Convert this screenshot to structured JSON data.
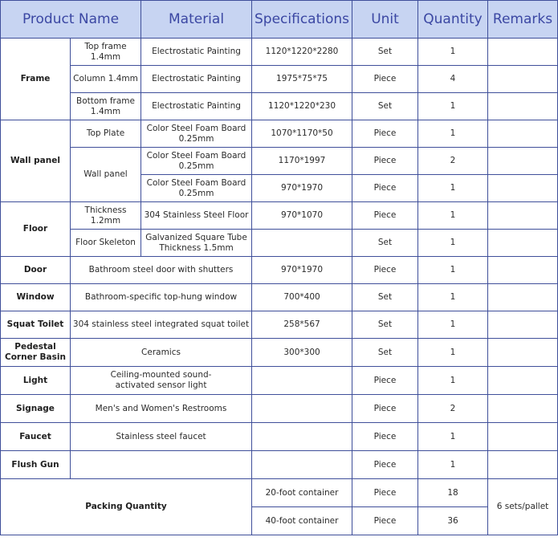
{
  "headers": [
    "Product Name",
    "Material",
    "Specifications",
    "Unit",
    "Quantity",
    "Remarks"
  ],
  "rows": {
    "frame": {
      "name": "Frame",
      "items": [
        {
          "part": "Top frame 1.4mm",
          "material": "Electrostatic Painting",
          "spec": "1120*1220*2280",
          "unit": "Set",
          "qty": "1"
        },
        {
          "part": "Column 1.4mm",
          "material": "Electrostatic Painting",
          "spec": "1975*75*75",
          "unit": "Piece",
          "qty": "4"
        },
        {
          "part": "Bottom frame 1.4mm",
          "material": "Electrostatic Painting",
          "spec": "1120*1220*230",
          "unit": "Set",
          "qty": "1"
        }
      ]
    },
    "wall": {
      "name": "Wall panel",
      "items": [
        {
          "part": "Top Plate",
          "material": "Color Steel Foam Board 0.25mm",
          "spec": "1070*1170*50",
          "unit": "Piece",
          "qty": "1"
        },
        {
          "part": "Wall panel",
          "material": "Color Steel Foam Board 0.25mm",
          "spec": "1170*1997",
          "unit": "Piece",
          "qty": "2"
        },
        {
          "material": "Color Steel Foam Board 0.25mm",
          "spec": "970*1970",
          "unit": "Piece",
          "qty": "1"
        }
      ]
    },
    "floor": {
      "name": "Floor",
      "items": [
        {
          "part": "Thickness 1.2mm",
          "material": "304 Stainless Steel Floor",
          "spec": "970*1070",
          "unit": "Piece",
          "qty": "1"
        },
        {
          "part": "Floor Skeleton",
          "material": "Galvanized Square Tube Thickness 1.5mm",
          "spec": "",
          "unit": "Set",
          "qty": "1"
        }
      ]
    },
    "door": {
      "name": "Door",
      "material": "Bathroom steel door with shutters",
      "spec": "970*1970",
      "unit": "Piece",
      "qty": "1"
    },
    "window": {
      "name": "Window",
      "material": "Bathroom-specific top-hung window",
      "spec": "700*400",
      "unit": "Set",
      "qty": "1"
    },
    "squat": {
      "name": "Squat Toilet",
      "material": "304 stainless steel integrated squat toilet",
      "spec": "258*567",
      "unit": "Set",
      "qty": "1"
    },
    "basin": {
      "name": "Pedestal Corner Basin",
      "material": "Ceramics",
      "spec": "300*300",
      "unit": "Set",
      "qty": "1"
    },
    "light": {
      "name": "Light",
      "material": "Ceiling-mounted sound-activated sensor light",
      "spec": "",
      "unit": "Piece",
      "qty": "1"
    },
    "signage": {
      "name": "Signage",
      "material": "Men's and Women's Restrooms",
      "spec": "",
      "unit": "Piece",
      "qty": "2"
    },
    "faucet": {
      "name": "Faucet",
      "material": "Stainless steel faucet",
      "spec": "",
      "unit": "Piece",
      "qty": "1"
    },
    "flush": {
      "name": "Flush Gun",
      "material": "",
      "spec": "",
      "unit": "Piece",
      "qty": "1"
    },
    "packing": {
      "name": "Packing Quantity",
      "remarks": "6 sets/pallet",
      "items": [
        {
          "spec": "20-foot container",
          "unit": "Piece",
          "qty": "18"
        },
        {
          "spec": "40-foot container",
          "unit": "Piece",
          "qty": "36"
        }
      ]
    }
  },
  "colors": {
    "header_bg": "#c7d4f2",
    "header_text": "#3b47a3",
    "border": "#3f4f9a"
  }
}
